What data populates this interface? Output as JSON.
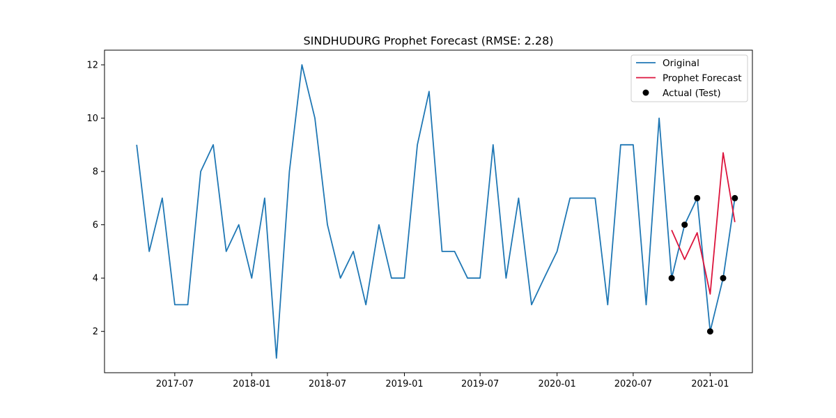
{
  "chart_data": {
    "type": "line",
    "title": "SINDHUDURG Prophet Forecast (RMSE: 2.28)",
    "xlabel": "",
    "ylabel": "",
    "x_axis": "date",
    "xlim": [
      "2017-01-14",
      "2021-04-12"
    ],
    "ylim": [
      0.45,
      12.55
    ],
    "x_ticks": [
      "2017-07",
      "2018-01",
      "2018-07",
      "2019-01",
      "2019-07",
      "2020-01",
      "2020-07",
      "2021-01"
    ],
    "y_ticks": [
      2,
      4,
      6,
      8,
      10,
      12
    ],
    "grid": false,
    "legend_position": "top-right",
    "series": [
      {
        "name": "Original",
        "kind": "line",
        "color": "#1f77b4",
        "x": [
          "2017-04-01",
          "2017-05-01",
          "2017-06-01",
          "2017-07-01",
          "2017-08-01",
          "2017-09-01",
          "2017-10-01",
          "2017-11-01",
          "2017-12-01",
          "2018-01-01",
          "2018-02-01",
          "2018-03-01",
          "2018-04-01",
          "2018-05-01",
          "2018-06-01",
          "2018-07-01",
          "2018-08-01",
          "2018-09-01",
          "2018-10-01",
          "2018-11-01",
          "2018-12-01",
          "2019-01-01",
          "2019-02-01",
          "2019-03-01",
          "2019-04-01",
          "2019-05-01",
          "2019-06-01",
          "2019-07-01",
          "2019-08-01",
          "2019-09-01",
          "2019-10-01",
          "2019-11-01",
          "2019-12-01",
          "2020-01-01",
          "2020-02-01",
          "2020-03-01",
          "2020-04-01",
          "2020-05-01",
          "2020-06-01",
          "2020-07-01",
          "2020-08-01",
          "2020-09-01",
          "2020-10-01",
          "2020-11-01",
          "2020-12-01",
          "2021-01-01",
          "2021-02-01",
          "2021-03-01"
        ],
        "y": [
          9,
          5,
          7,
          3,
          3,
          8,
          9,
          5,
          6,
          4,
          7,
          1,
          8,
          12,
          10,
          6,
          4,
          5,
          3,
          6,
          4,
          4,
          9,
          11,
          5,
          5,
          4,
          4,
          9,
          4,
          7,
          3,
          4,
          5,
          7,
          7,
          7,
          3,
          9,
          9,
          3,
          10,
          4,
          6,
          7,
          2,
          4,
          7
        ]
      },
      {
        "name": "Prophet Forecast",
        "kind": "line",
        "color": "#dc143c",
        "x": [
          "2020-10-01",
          "2020-11-01",
          "2020-12-01",
          "2021-01-01",
          "2021-02-01",
          "2021-03-01"
        ],
        "y": [
          5.8,
          4.7,
          5.7,
          3.4,
          8.7,
          6.1
        ]
      },
      {
        "name": "Actual (Test)",
        "kind": "scatter",
        "color": "#000000",
        "x": [
          "2020-10-01",
          "2020-11-01",
          "2020-12-01",
          "2021-01-01",
          "2021-02-01",
          "2021-03-01"
        ],
        "y": [
          4,
          6,
          7,
          2,
          4,
          7
        ]
      }
    ]
  }
}
